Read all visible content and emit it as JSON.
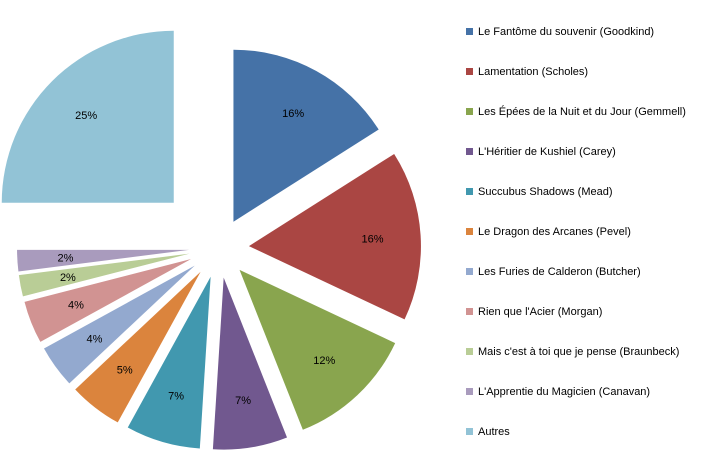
{
  "chart_data": {
    "type": "pie",
    "style": "exploded",
    "title": "",
    "legend_position": "right",
    "slices": [
      {
        "label": "Le Fantôme du souvenir (Goodkind)",
        "value": 16,
        "value_label": "16%",
        "color": "#4572A7"
      },
      {
        "label": "Lamentation (Scholes)",
        "value": 16,
        "value_label": "16%",
        "color": "#AA4643"
      },
      {
        "label": "Les Épées de la Nuit et du Jour (Gemmell)",
        "value": 12,
        "value_label": "12%",
        "color": "#89A54E"
      },
      {
        "label": "L'Héritier de Kushiel (Carey)",
        "value": 7,
        "value_label": "7%",
        "color": "#71588F"
      },
      {
        "label": "Succubus Shadows (Mead)",
        "value": 7,
        "value_label": "7%",
        "color": "#4198AF"
      },
      {
        "label": "Le Dragon des Arcanes (Pevel)",
        "value": 5,
        "value_label": "5%",
        "color": "#DB843D"
      },
      {
        "label": "Les Furies de Calderon (Butcher)",
        "value": 4,
        "value_label": "4%",
        "color": "#93A9CF"
      },
      {
        "label": "Rien que l'Acier (Morgan)",
        "value": 4,
        "value_label": "4%",
        "color": "#D19392"
      },
      {
        "label": "Mais c'est à toi que je pense (Braunbeck)",
        "value": 2,
        "value_label": "2%",
        "color": "#B9CD96"
      },
      {
        "label": "L'Apprentie du Magicien (Canavan)",
        "value": 2,
        "value_label": "2%",
        "color": "#A99BBD"
      },
      {
        "label": "Autres",
        "value": 25,
        "value_label": "25%",
        "color": "#92C3D6"
      }
    ]
  }
}
